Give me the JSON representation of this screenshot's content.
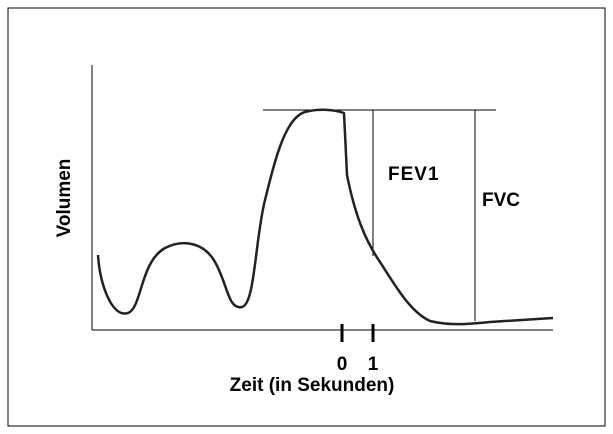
{
  "y_axis_label": "Volumen",
  "x_axis_label": "Zeit (in Sekunden)",
  "x_tick_labels": [
    "0",
    "1"
  ],
  "annotations": [
    "FEV1",
    "FVC"
  ]
}
